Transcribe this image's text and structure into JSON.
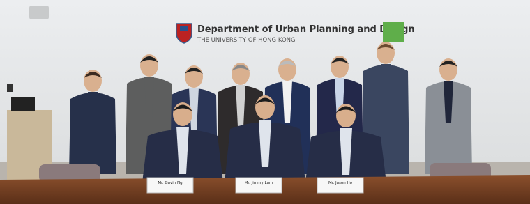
{
  "header": {
    "title": "Department of Urban Planning and Design",
    "subtitle": "THE UNIVERSITY OF HONG KONG"
  },
  "name_plates": [
    "Mr. Gavin Ng",
    "Mr. Jimmy Lam",
    "Mr. Jason Ho"
  ]
}
